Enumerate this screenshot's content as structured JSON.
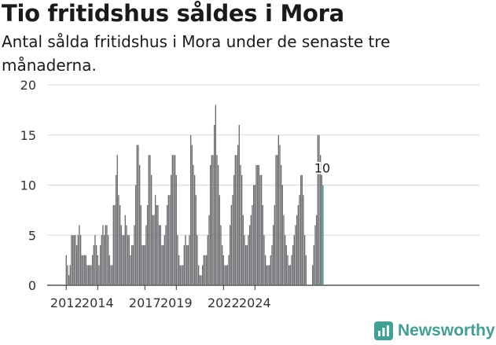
{
  "title": "Tio fritidshus såldes i Mora",
  "subtitle": "Antal sålda fritidshus i Mora under de senaste tre månaderna.",
  "brand": "Newsworthy",
  "colors": {
    "bar": "#6d6d71",
    "highlight": "#2a9d93",
    "grid": "#d8d8d8",
    "axis": "#333333"
  },
  "chart_data": {
    "type": "bar",
    "x_start": "2012-01",
    "x_end": "2024-11",
    "xtick_labels": [
      "2012",
      "2014",
      "2017",
      "2019",
      "2022",
      "2024"
    ],
    "ytick_labels": [
      "0",
      "5",
      "10",
      "15",
      "20"
    ],
    "ylim": [
      0,
      20
    ],
    "grid": true,
    "values": [
      3,
      2,
      1,
      2,
      5,
      5,
      5,
      5,
      4,
      5,
      6,
      5,
      3,
      3,
      3,
      3,
      2,
      2,
      2,
      2,
      3,
      4,
      5,
      4,
      3,
      2,
      4,
      5,
      6,
      5,
      6,
      6,
      5,
      3,
      2,
      2,
      8,
      8,
      11,
      13,
      9,
      8,
      6,
      5,
      5,
      7,
      6,
      5,
      5,
      3,
      4,
      4,
      6,
      10,
      14,
      14,
      12,
      8,
      4,
      4,
      4,
      6,
      8,
      13,
      13,
      11,
      7,
      7,
      9,
      8,
      8,
      6,
      6,
      4,
      4,
      5,
      6,
      8,
      9,
      9,
      11,
      13,
      13,
      13,
      11,
      5,
      3,
      2,
      2,
      2,
      4,
      5,
      4,
      4,
      5,
      15,
      14,
      12,
      11,
      9,
      5,
      2,
      1,
      1,
      2,
      3,
      3,
      3,
      5,
      7,
      12,
      13,
      13,
      16,
      18,
      13,
      12,
      9,
      6,
      4,
      3,
      2,
      2,
      2,
      3,
      6,
      8,
      9,
      11,
      13,
      13,
      14,
      16,
      12,
      11,
      7,
      5,
      4,
      4,
      5,
      6,
      7,
      8,
      10,
      10,
      12,
      12,
      12,
      11,
      11,
      8,
      5,
      3,
      2,
      2,
      2,
      3,
      4,
      6,
      8,
      13,
      13,
      15,
      14,
      12,
      10,
      7,
      5,
      4,
      3,
      2,
      2,
      3,
      4,
      5,
      6,
      7,
      8,
      9,
      11,
      11,
      9,
      5,
      3,
      0,
      0,
      0,
      0,
      2,
      4,
      6,
      7,
      15,
      15,
      13,
      11,
      10
    ],
    "last_label": "10"
  }
}
